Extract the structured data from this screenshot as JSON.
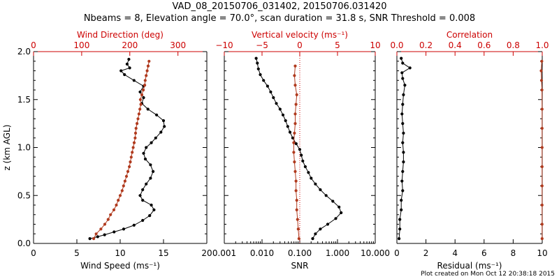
{
  "header": {
    "title_line1": "VAD_08_20150706_031402, 20150706.031420",
    "title_line2": "Nbeams = 8, Elevation angle = 70.0°, scan duration = 31.8 s, SNR Threshold = 0.008"
  },
  "footer": {
    "text": "Plot created on Mon Oct 12 20:38:18 2015"
  },
  "colors": {
    "primary": "#000000",
    "secondary": "#b03a1e",
    "top_axis": "#cc0000",
    "background": "#ffffff"
  },
  "chart_data": [
    {
      "type": "line",
      "ylabel": "z (km AGL)",
      "ylim": [
        0,
        2.0
      ],
      "yticks": [
        "0.0",
        "0.5",
        "1.0",
        "1.5",
        "2.0"
      ],
      "bottom_axis": {
        "label": "Wind Speed (ms⁻¹)",
        "lim": [
          0,
          20
        ],
        "ticks": [
          "0",
          "5",
          "10",
          "15",
          "20"
        ]
      },
      "top_axis": {
        "label": "Wind Direction (deg)",
        "lim": [
          0,
          360
        ],
        "ticks": [
          "0",
          "100",
          "200",
          "300"
        ]
      },
      "series": [
        {
          "axis": "bottom",
          "color": "primary",
          "points": [
            [
              6.5,
              0.05
            ],
            [
              7.4,
              0.07
            ],
            [
              8.2,
              0.09
            ],
            [
              9.3,
              0.12
            ],
            [
              10.4,
              0.15
            ],
            [
              11.6,
              0.19
            ],
            [
              12.6,
              0.24
            ],
            [
              13.4,
              0.29
            ],
            [
              13.9,
              0.35
            ],
            [
              13.6,
              0.4
            ],
            [
              12.6,
              0.45
            ],
            [
              12.3,
              0.5
            ],
            [
              12.6,
              0.56
            ],
            [
              13.0,
              0.62
            ],
            [
              13.5,
              0.68
            ],
            [
              13.8,
              0.75
            ],
            [
              13.5,
              0.82
            ],
            [
              12.9,
              0.88
            ],
            [
              12.7,
              0.94
            ],
            [
              13.0,
              1.0
            ],
            [
              13.6,
              1.05
            ],
            [
              14.1,
              1.1
            ],
            [
              14.7,
              1.16
            ],
            [
              15.1,
              1.22
            ],
            [
              15.0,
              1.28
            ],
            [
              14.2,
              1.34
            ],
            [
              13.2,
              1.4
            ],
            [
              12.5,
              1.46
            ],
            [
              12.7,
              1.52
            ],
            [
              12.3,
              1.58
            ],
            [
              12.7,
              1.64
            ],
            [
              11.6,
              1.7
            ],
            [
              10.5,
              1.76
            ],
            [
              10.1,
              1.8
            ],
            [
              11.1,
              1.83
            ],
            [
              10.8,
              1.87
            ],
            [
              11.0,
              1.92
            ]
          ]
        },
        {
          "axis": "top",
          "color": "secondary",
          "points": [
            [
              125,
              0.05
            ],
            [
              130,
              0.1
            ],
            [
              140,
              0.15
            ],
            [
              148,
              0.2
            ],
            [
              155,
              0.25
            ],
            [
              160,
              0.3
            ],
            [
              167,
              0.35
            ],
            [
              172,
              0.4
            ],
            [
              176,
              0.45
            ],
            [
              180,
              0.5
            ],
            [
              184,
              0.55
            ],
            [
              187,
              0.6
            ],
            [
              190,
              0.65
            ],
            [
              193,
              0.7
            ],
            [
              196,
              0.75
            ],
            [
              199,
              0.8
            ],
            [
              201,
              0.85
            ],
            [
              203,
              0.9
            ],
            [
              205,
              0.95
            ],
            [
              207,
              1.0
            ],
            [
              209,
              1.05
            ],
            [
              211,
              1.1
            ],
            [
              212,
              1.15
            ],
            [
              213,
              1.2
            ],
            [
              215,
              1.25
            ],
            [
              217,
              1.3
            ],
            [
              219,
              1.35
            ],
            [
              221,
              1.4
            ],
            [
              223,
              1.45
            ],
            [
              222,
              1.5
            ],
            [
              225,
              1.55
            ],
            [
              228,
              1.6
            ],
            [
              231,
              1.65
            ],
            [
              232,
              1.7
            ],
            [
              234,
              1.75
            ],
            [
              236,
              1.8
            ],
            [
              238,
              1.85
            ],
            [
              240,
              1.9
            ]
          ]
        }
      ]
    },
    {
      "type": "line",
      "ylim": [
        0,
        2.0
      ],
      "bottom_axis": {
        "label": "SNR",
        "scale": "log",
        "lim": [
          0.001,
          10
        ],
        "ticks": [
          "0.001",
          "0.010",
          "0.100",
          "1.000",
          "10.000"
        ]
      },
      "top_axis": {
        "label": "Vertical velocity (ms⁻¹)",
        "lim": [
          -10,
          10
        ],
        "ticks": [
          "−10",
          "−5",
          "0",
          "5",
          "10"
        ],
        "reference_line": 0
      },
      "series": [
        {
          "axis": "bottom",
          "color": "primary",
          "points": [
            [
              0.22,
              0.05
            ],
            [
              0.26,
              0.1
            ],
            [
              0.35,
              0.15
            ],
            [
              0.55,
              0.2
            ],
            [
              0.9,
              0.26
            ],
            [
              1.25,
              0.32
            ],
            [
              1.1,
              0.38
            ],
            [
              0.75,
              0.44
            ],
            [
              0.5,
              0.5
            ],
            [
              0.35,
              0.56
            ],
            [
              0.26,
              0.62
            ],
            [
              0.2,
              0.68
            ],
            [
              0.17,
              0.74
            ],
            [
              0.14,
              0.8
            ],
            [
              0.12,
              0.86
            ],
            [
              0.11,
              0.92
            ],
            [
              0.1,
              0.98
            ],
            [
              0.08,
              1.04
            ],
            [
              0.065,
              1.1
            ],
            [
              0.055,
              1.16
            ],
            [
              0.048,
              1.22
            ],
            [
              0.042,
              1.28
            ],
            [
              0.036,
              1.34
            ],
            [
              0.03,
              1.4
            ],
            [
              0.024,
              1.46
            ],
            [
              0.02,
              1.52
            ],
            [
              0.017,
              1.58
            ],
            [
              0.014,
              1.64
            ],
            [
              0.011,
              1.7
            ],
            [
              0.009,
              1.76
            ],
            [
              0.008,
              1.82
            ],
            [
              0.0075,
              1.88
            ],
            [
              0.007,
              1.93
            ]
          ]
        },
        {
          "axis": "top",
          "color": "secondary",
          "points": [
            [
              -0.1,
              0.05
            ],
            [
              -0.2,
              0.15
            ],
            [
              -0.3,
              0.25
            ],
            [
              -0.4,
              0.35
            ],
            [
              -0.4,
              0.45
            ],
            [
              -0.5,
              0.55
            ],
            [
              -0.5,
              0.65
            ],
            [
              -0.6,
              0.75
            ],
            [
              -0.7,
              0.85
            ],
            [
              -0.8,
              0.95
            ],
            [
              -0.8,
              1.05
            ],
            [
              -0.7,
              1.15
            ],
            [
              -0.6,
              1.25
            ],
            [
              -0.6,
              1.35
            ],
            [
              -0.5,
              1.45
            ],
            [
              -0.4,
              1.55
            ],
            [
              -0.6,
              1.65
            ],
            [
              -0.7,
              1.75
            ],
            [
              -0.6,
              1.85
            ]
          ]
        }
      ]
    },
    {
      "type": "line",
      "ylim": [
        0,
        2.0
      ],
      "bottom_axis": {
        "label": "Residual (ms⁻¹)",
        "lim": [
          0,
          10
        ],
        "ticks": [
          "0",
          "2",
          "4",
          "6",
          "8",
          "10"
        ]
      },
      "top_axis": {
        "label": "Correlation",
        "lim": [
          0,
          1.0
        ],
        "ticks": [
          "0.0",
          "0.2",
          "0.4",
          "0.6",
          "0.8",
          "1.0"
        ]
      },
      "series": [
        {
          "axis": "bottom",
          "color": "primary",
          "points": [
            [
              0.15,
              0.05
            ],
            [
              0.2,
              0.15
            ],
            [
              0.2,
              0.25
            ],
            [
              0.3,
              0.35
            ],
            [
              0.3,
              0.45
            ],
            [
              0.4,
              0.55
            ],
            [
              0.35,
              0.65
            ],
            [
              0.4,
              0.75
            ],
            [
              0.45,
              0.85
            ],
            [
              0.45,
              0.95
            ],
            [
              0.4,
              1.05
            ],
            [
              0.45,
              1.15
            ],
            [
              0.4,
              1.25
            ],
            [
              0.35,
              1.35
            ],
            [
              0.4,
              1.45
            ],
            [
              0.45,
              1.55
            ],
            [
              0.55,
              1.65
            ],
            [
              0.4,
              1.72
            ],
            [
              0.35,
              1.78
            ],
            [
              0.9,
              1.83
            ],
            [
              0.4,
              1.88
            ],
            [
              0.3,
              1.93
            ]
          ]
        },
        {
          "axis": "top",
          "color": "secondary",
          "points": [
            [
              0.999,
              0.05
            ],
            [
              0.999,
              0.2
            ],
            [
              0.999,
              0.4
            ],
            [
              0.999,
              0.6
            ],
            [
              0.999,
              0.8
            ],
            [
              0.999,
              1.0
            ],
            [
              0.999,
              1.2
            ],
            [
              0.999,
              1.4
            ],
            [
              0.998,
              1.6
            ],
            [
              0.995,
              1.7
            ],
            [
              0.993,
              1.8
            ],
            [
              0.997,
              1.9
            ]
          ]
        }
      ]
    }
  ]
}
